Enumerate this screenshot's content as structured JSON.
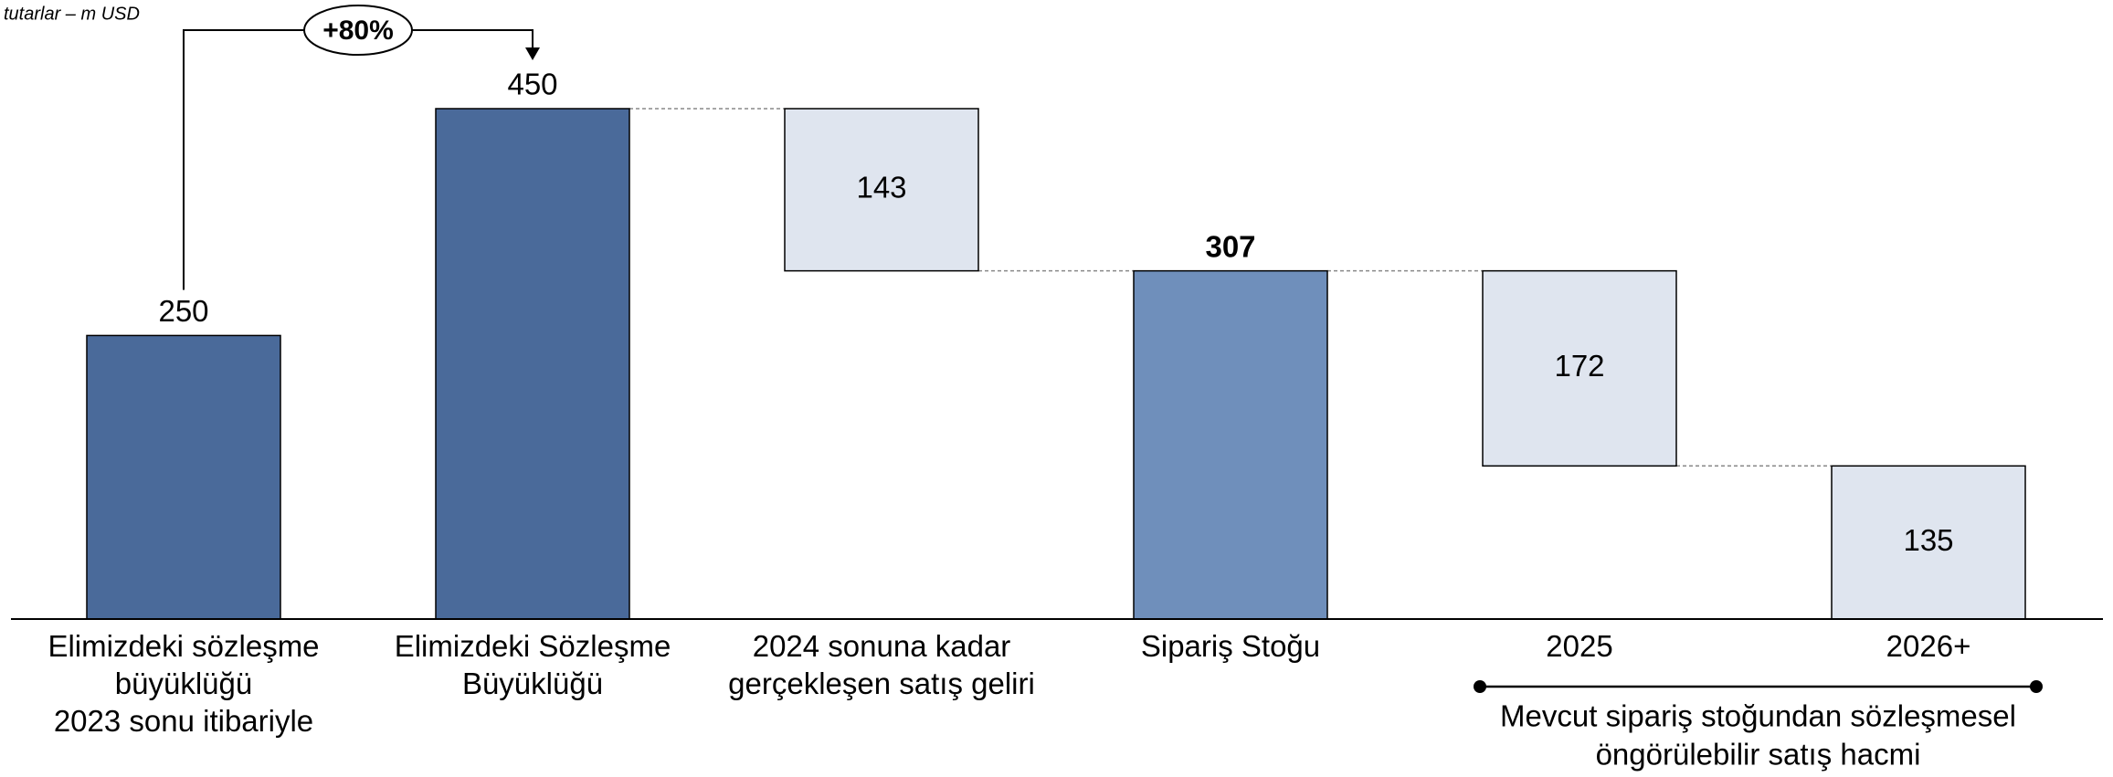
{
  "chart_data": {
    "type": "waterfall",
    "note": "tutarlar – m USD",
    "categories": [
      [
        "Elimizdeki sözleşme",
        "büyüklüğü",
        "2023 sonu itibariyle"
      ],
      [
        "Elimizdeki Sözleşme",
        "Büyüklüğü"
      ],
      [
        "2024 sonuna kadar",
        "gerçekleşen satış geliri"
      ],
      [
        "Sipariş Stoğu"
      ],
      [
        "2025"
      ],
      [
        "2026+"
      ]
    ],
    "values": [
      250,
      450,
      143,
      307,
      172,
      135
    ],
    "measures": [
      "absolute",
      "absolute",
      "decrease",
      "absolute",
      "decrease",
      "decrease"
    ],
    "colors": [
      "#4a6a9a",
      "#4a6a9a",
      "#dfe5ef",
      "#6f8fbb",
      "#dfe5ef",
      "#dfe5ef"
    ],
    "value_label_bold": [
      false,
      false,
      false,
      true,
      false,
      false
    ],
    "growth_annotation": {
      "text": "+80%",
      "from": 0,
      "to": 1
    },
    "bracket": {
      "from": 4,
      "to": 5,
      "lines": [
        "Mevcut sipariş stoğundan sözleşmesel",
        "öngörülebilir satış hacmi"
      ]
    }
  }
}
